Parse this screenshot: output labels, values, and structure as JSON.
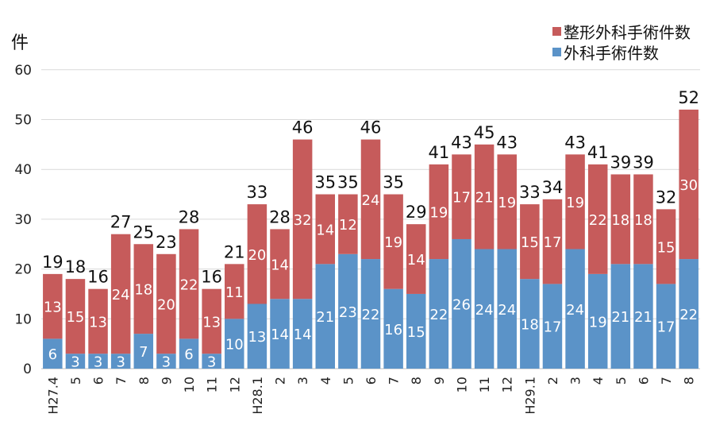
{
  "chart_data": {
    "type": "bar",
    "stacked": true,
    "unit_label": "件",
    "categories": [
      "H27.4",
      "5",
      "6",
      "7",
      "8",
      "9",
      "10",
      "11",
      "12",
      "H28.1",
      "2",
      "3",
      "4",
      "5",
      "6",
      "7",
      "8",
      "9",
      "10",
      "11",
      "12",
      "H29.1",
      "2",
      "3",
      "4",
      "5",
      "6",
      "7",
      "8"
    ],
    "series": [
      {
        "name": "外科手術件数",
        "color": "#5b93c8",
        "values": [
          6,
          3,
          3,
          3,
          7,
          3,
          6,
          3,
          10,
          13,
          14,
          14,
          21,
          23,
          22,
          16,
          15,
          22,
          26,
          24,
          24,
          18,
          17,
          24,
          19,
          21,
          21,
          17,
          22
        ]
      },
      {
        "name": "整形外科手術件数",
        "color": "#c65b5b",
        "values": [
          13,
          15,
          13,
          24,
          18,
          20,
          22,
          13,
          11,
          20,
          14,
          32,
          14,
          12,
          24,
          19,
          14,
          19,
          17,
          21,
          19,
          15,
          17,
          19,
          22,
          18,
          18,
          15,
          30
        ]
      }
    ],
    "totals": [
      19,
      18,
      16,
      27,
      25,
      23,
      28,
      16,
      21,
      33,
      28,
      46,
      35,
      35,
      46,
      35,
      29,
      41,
      43,
      45,
      43,
      33,
      34,
      43,
      41,
      39,
      39,
      32,
      52
    ],
    "ylim": [
      0,
      60
    ],
    "yticks": [
      0,
      10,
      20,
      30,
      40,
      50,
      60
    ],
    "legend_position": "top-right"
  }
}
